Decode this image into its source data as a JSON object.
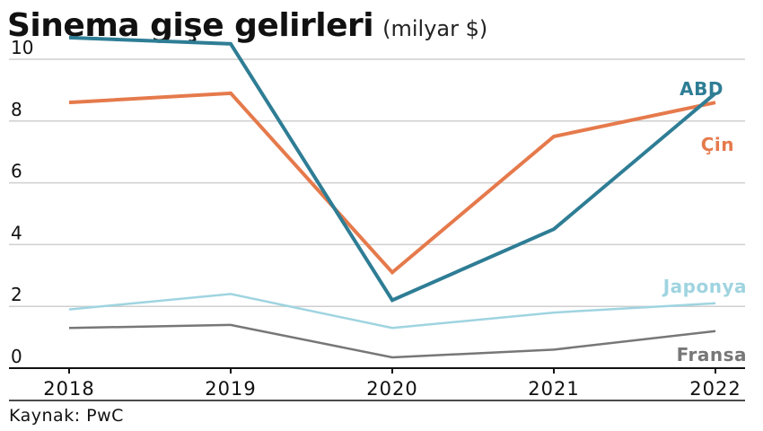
{
  "header": {
    "title": "Sinema gişe gelirleri",
    "unit": "(milyar $)"
  },
  "footer": {
    "source": "Kaynak: PwC"
  },
  "chart_data": {
    "type": "line",
    "title": "Sinema gişe gelirleri",
    "subtitle": "(milyar $)",
    "x": [
      "2018",
      "2019",
      "2020",
      "2021",
      "2022"
    ],
    "ylim": [
      0,
      11
    ],
    "yticks": [
      0,
      2,
      4,
      6,
      8,
      10
    ],
    "grid": true,
    "legend": "inline-right",
    "series": [
      {
        "name": "ABD",
        "color": "#2e7d95",
        "values": [
          10.7,
          10.5,
          2.2,
          4.5,
          8.9
        ]
      },
      {
        "name": "Çin",
        "color": "#e57a4c",
        "values": [
          8.6,
          8.9,
          3.1,
          7.5,
          8.6
        ]
      },
      {
        "name": "Japonya",
        "color": "#9fd4e0",
        "values": [
          1.9,
          2.4,
          1.3,
          1.8,
          2.1
        ]
      },
      {
        "name": "Fransa",
        "color": "#777777",
        "values": [
          1.3,
          1.4,
          0.35,
          0.6,
          1.2
        ]
      }
    ]
  }
}
